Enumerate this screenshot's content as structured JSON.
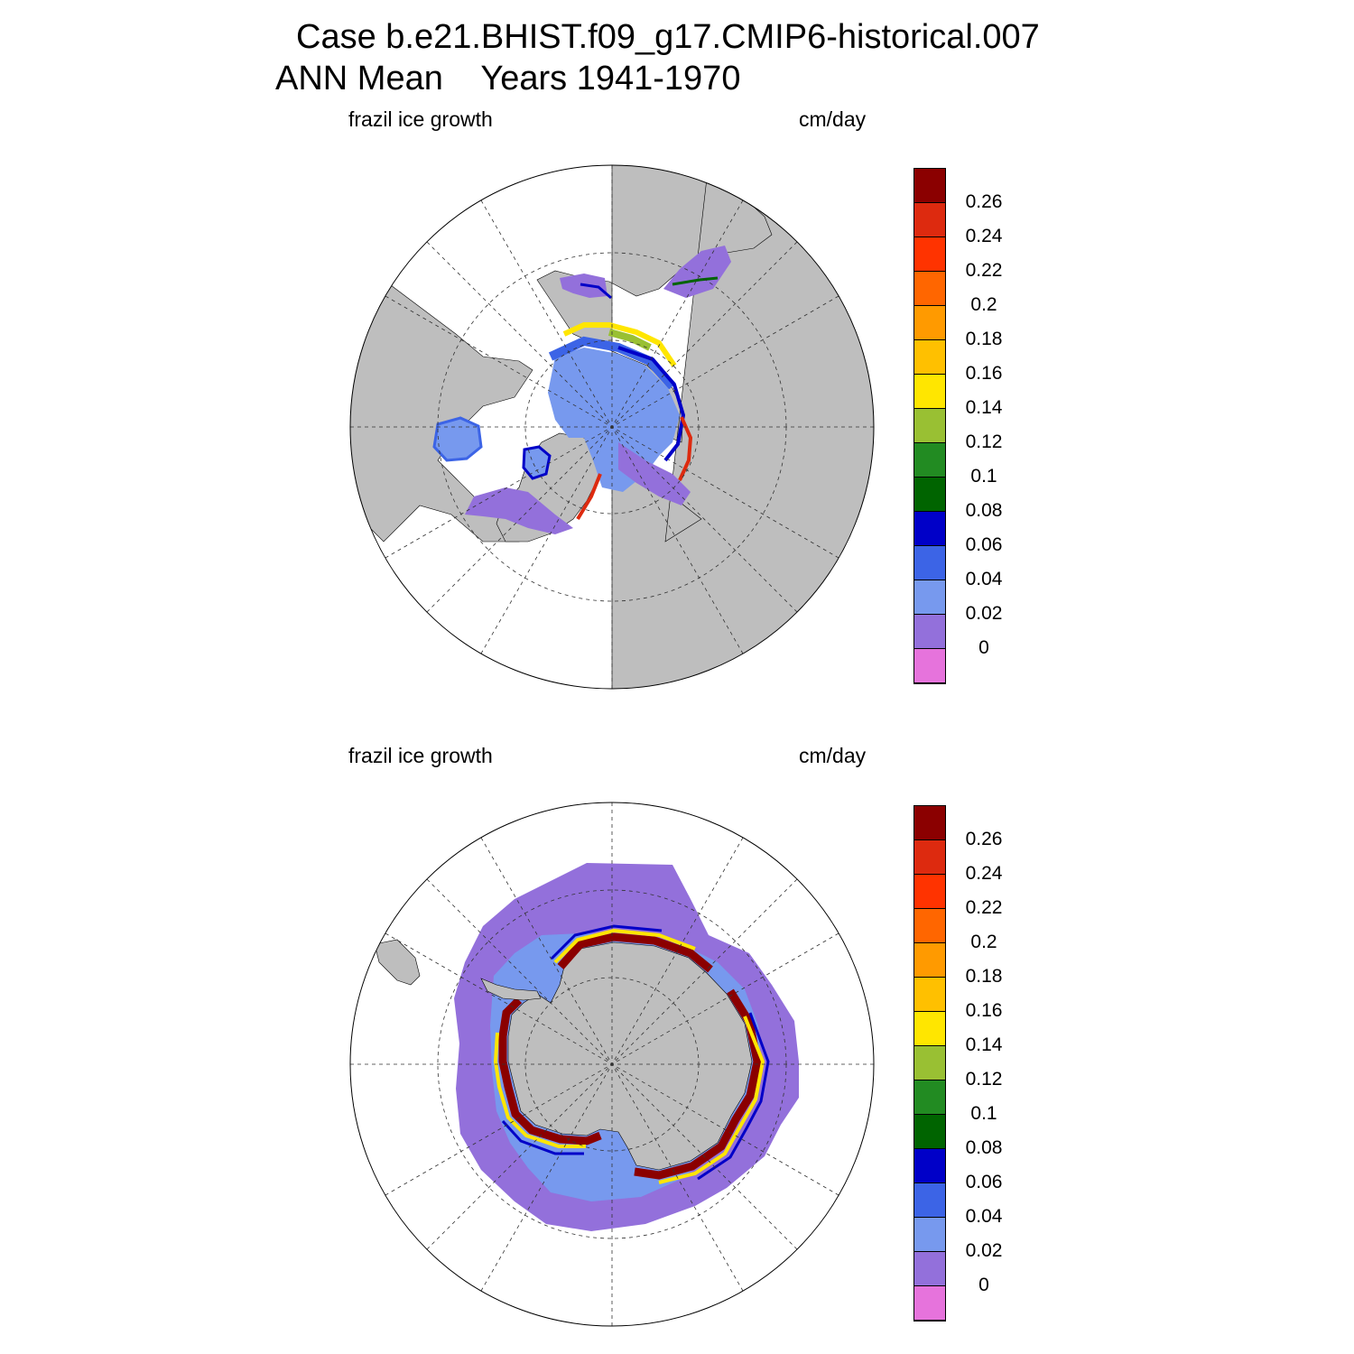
{
  "header": {
    "case_line": "Case b.e21.BHIST.f09_g17.CMIP6-historical.007",
    "period_line": "ANN Mean    Years 1941-1970"
  },
  "panels": [
    {
      "id": "north",
      "left_string": "frazil ice growth",
      "right_string": "cm/day",
      "hemisphere": "north"
    },
    {
      "id": "south",
      "left_string": "frazil ice growth",
      "right_string": "cm/day",
      "hemisphere": "south"
    }
  ],
  "colorbar": {
    "levels": [
      "0",
      "0.02",
      "0.04",
      "0.06",
      "0.08",
      "0.1",
      "0.12",
      "0.14",
      "0.16",
      "0.18",
      "0.2",
      "0.22",
      "0.24",
      "0.26"
    ],
    "colors": [
      "#e673dc",
      "#9370db",
      "#7799ee",
      "#3c64e6",
      "#0000c8",
      "#006400",
      "#228b22",
      "#99c033",
      "#ffe600",
      "#ffc000",
      "#ff9a00",
      "#ff6600",
      "#ff3300",
      "#dd2a0f",
      "#8b0000"
    ]
  },
  "styles": {
    "land": "#bebebe",
    "ocean": "#ffffff",
    "grid": "#333333"
  }
}
